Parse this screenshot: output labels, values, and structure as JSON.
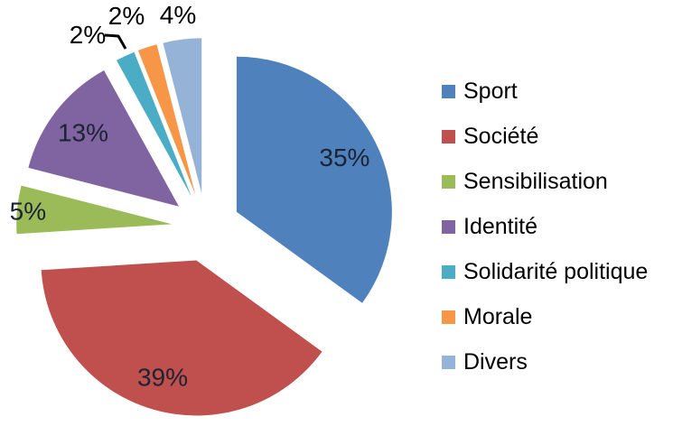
{
  "chart_data": {
    "type": "pie",
    "exploded": true,
    "title": "",
    "categories": [
      "Sport",
      "Société",
      "Sensibilisation",
      "Identité",
      "Solidarité politique",
      "Morale",
      "Divers"
    ],
    "values": [
      35,
      39,
      5,
      13,
      2,
      2,
      4
    ],
    "labels": [
      "35%",
      "39%",
      "5%",
      "13%",
      "2%",
      "2%",
      "4%"
    ],
    "colors": [
      "#4F81BD",
      "#C0504D",
      "#9BBB59",
      "#8064A2",
      "#4BACC6",
      "#F79646",
      "#95B3D7"
    ],
    "label_color_inside": "#1c2333",
    "label_color_outside": "#000000",
    "background_color": "#ffffff",
    "legend_position": "right",
    "start_angle_deg": 0,
    "direction": "clockwise",
    "grid": false
  }
}
